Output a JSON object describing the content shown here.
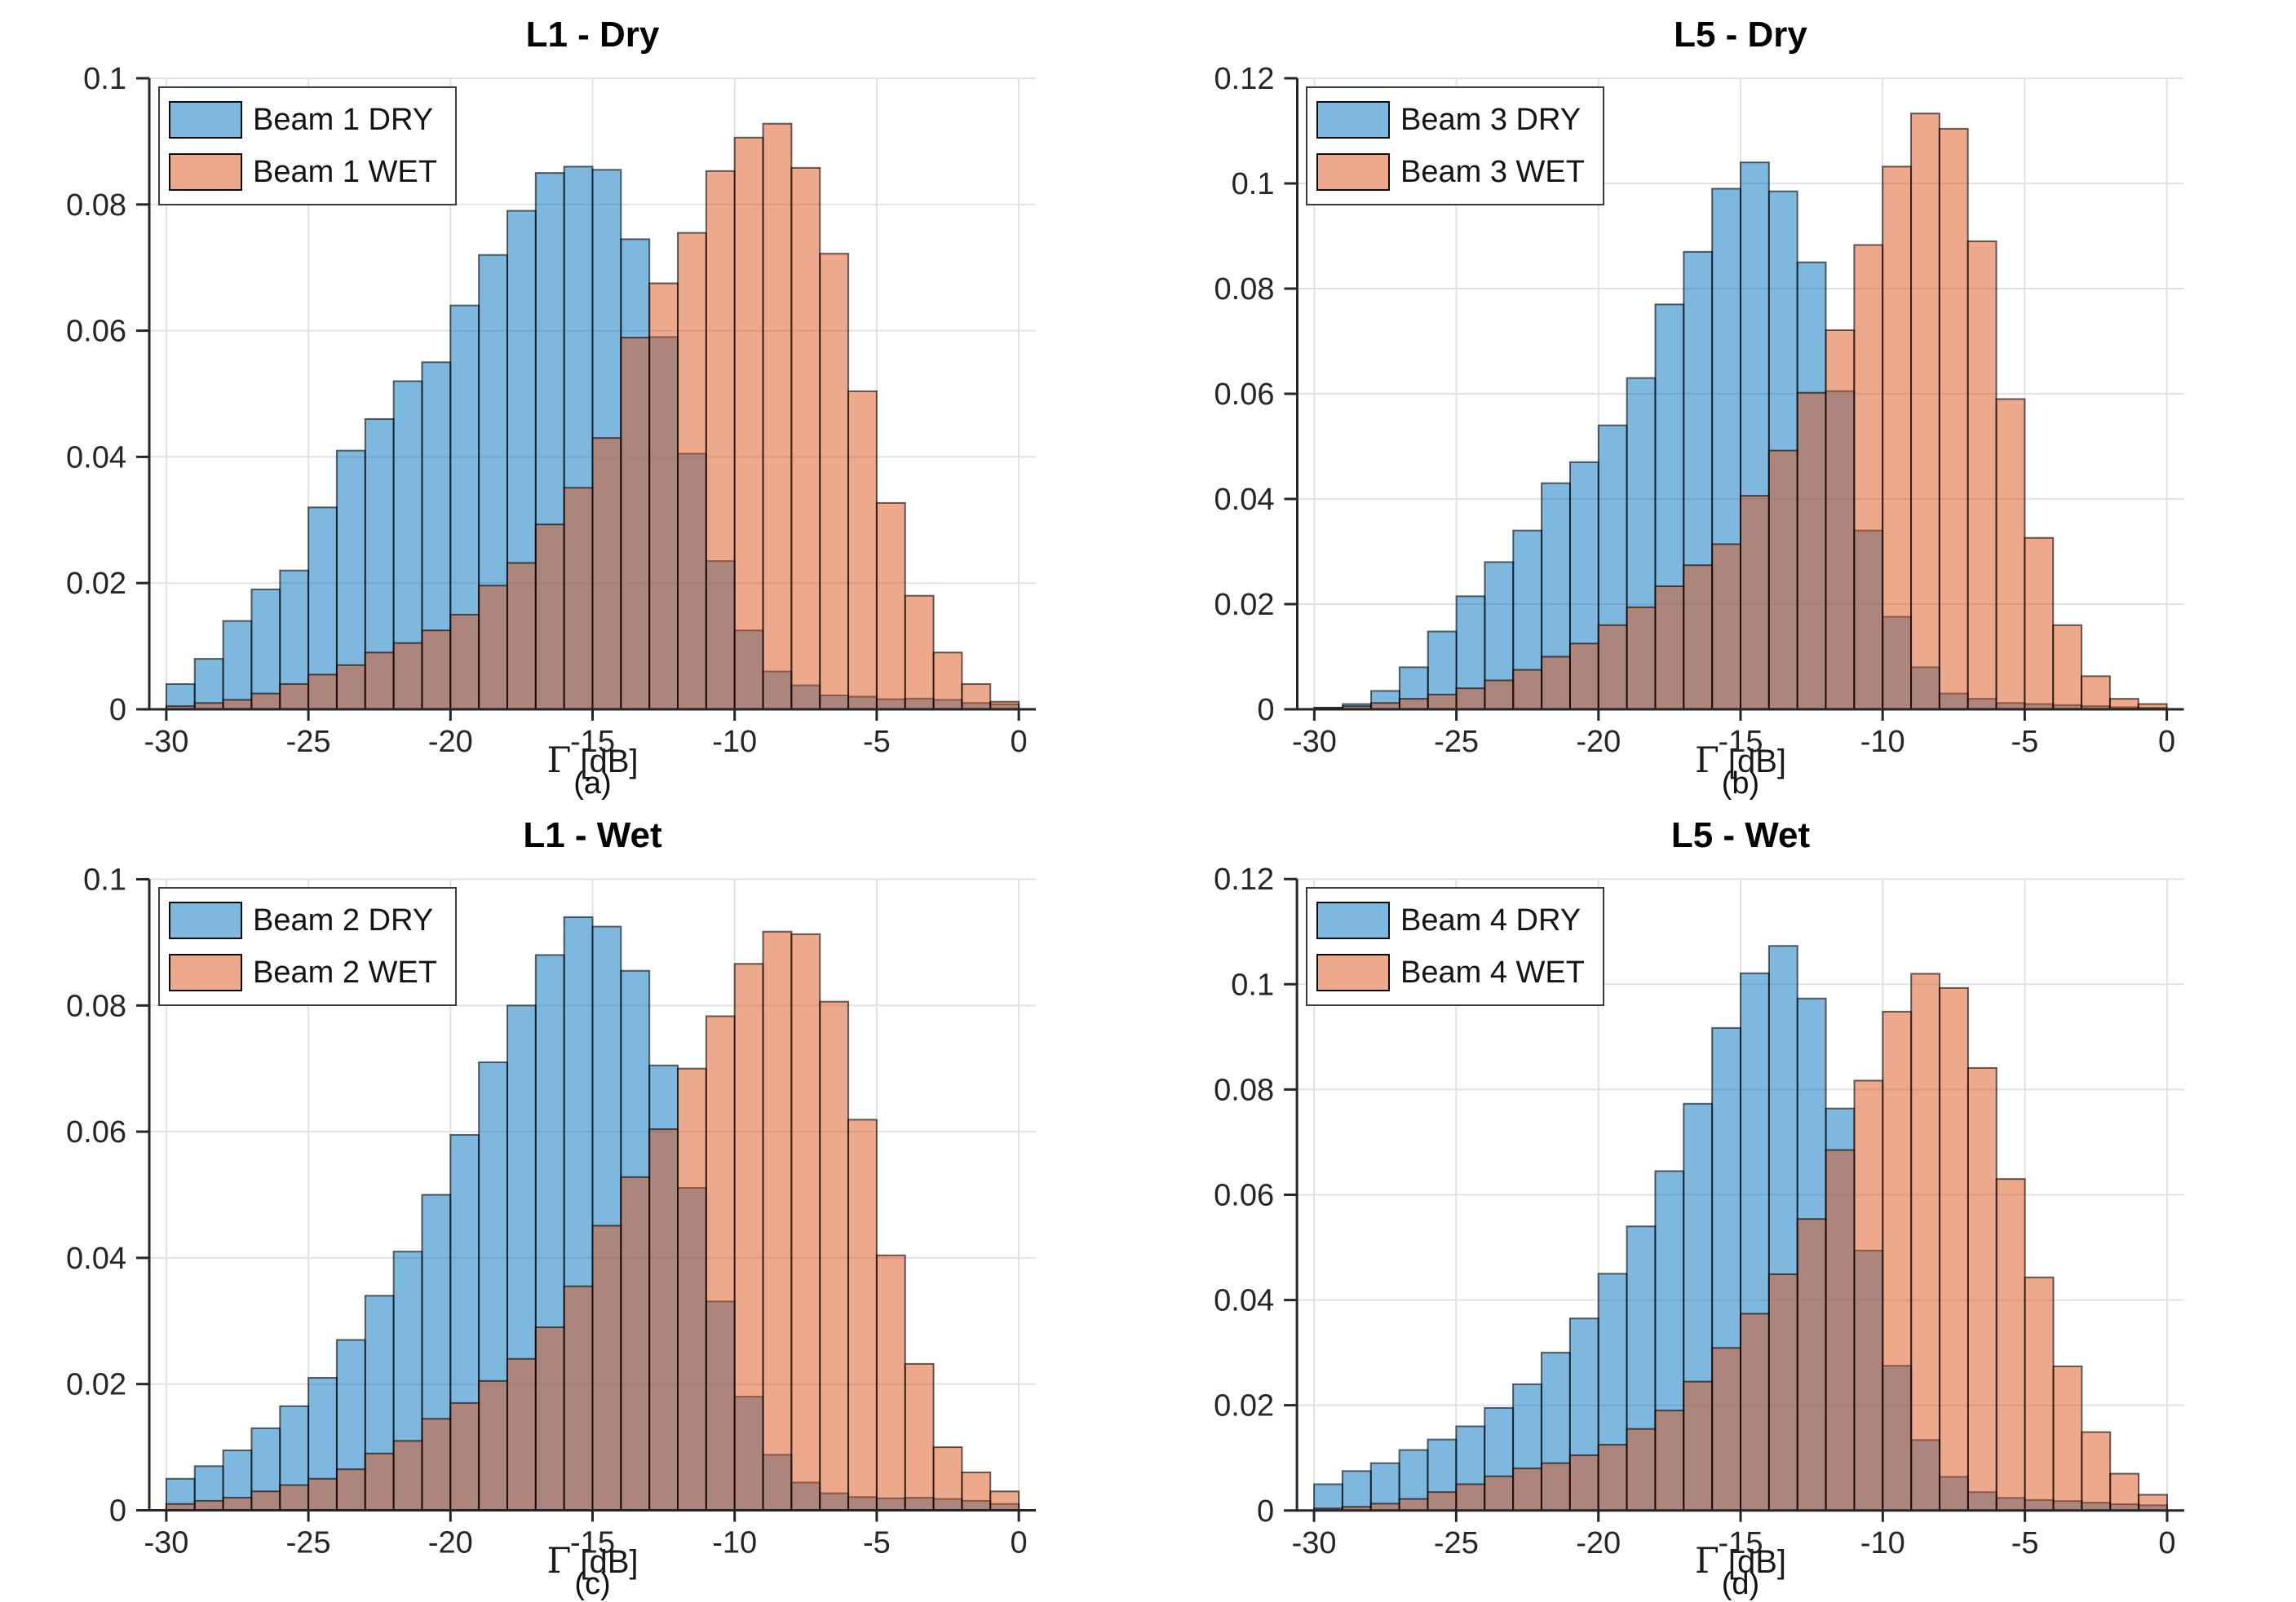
{
  "styles": {
    "background": "#ffffff",
    "dry_color": "#0072BD",
    "wet_color": "#D95319",
    "face_alpha": 0.5,
    "bar_edge_color": "#000000",
    "grid_color": "#E2E2E2",
    "axis_color": "#262626",
    "text_color": "#262626"
  },
  "chart_data": [
    {
      "type": "bar",
      "panel": "a",
      "title": "L1 - Dry",
      "caption": "(a)",
      "xlabel": "Γ [dB]",
      "xlabel_gamma": "Γ",
      "xlabel_rest": " [dB]",
      "bin_start": -30,
      "bin_width": 1,
      "xlim": [
        -30.6,
        0.6
      ],
      "ylim": [
        0,
        0.1
      ],
      "xticks": [
        -30,
        -25,
        -20,
        -15,
        -10,
        -5,
        0
      ],
      "xtick_labels": [
        "-30",
        "-25",
        "-20",
        "-15",
        "-10",
        "-5",
        "0"
      ],
      "yticks": [
        0,
        0.02,
        0.04,
        0.06,
        0.08,
        0.1
      ],
      "ytick_labels": [
        "0",
        "0.02",
        "0.04",
        "0.06",
        "0.08",
        "0.1"
      ],
      "grid": true,
      "legend_position": "top-left",
      "series": [
        {
          "name": "Beam 1 DRY",
          "color": "#0072BD",
          "values": [
            0.004,
            0.008,
            0.014,
            0.019,
            0.022,
            0.032,
            0.041,
            0.046,
            0.052,
            0.055,
            0.064,
            0.072,
            0.079,
            0.085,
            0.086,
            0.0855,
            0.0745,
            0.059,
            0.0405,
            0.0235,
            0.0125,
            0.006,
            0.0038,
            0.0022,
            0.002,
            0.0016,
            0.0017,
            0.0015,
            0.001,
            0.0008
          ]
        },
        {
          "name": "Beam 1 WET",
          "color": "#D95319",
          "values": [
            0.0005,
            0.001,
            0.0015,
            0.0025,
            0.004,
            0.0055,
            0.007,
            0.009,
            0.0105,
            0.0125,
            0.015,
            0.0196,
            0.0232,
            0.0293,
            0.0351,
            0.043,
            0.0589,
            0.0675,
            0.0755,
            0.0853,
            0.0906,
            0.0928,
            0.0858,
            0.0722,
            0.0504,
            0.0327,
            0.018,
            0.009,
            0.004,
            0.0012
          ]
        }
      ]
    },
    {
      "type": "bar",
      "panel": "b",
      "title": "L5 - Dry",
      "caption": "(b)",
      "xlabel": "Γ [dB]",
      "xlabel_gamma": "Γ",
      "xlabel_rest": " [dB]",
      "bin_start": -30,
      "bin_width": 1,
      "xlim": [
        -30.6,
        0.6
      ],
      "ylim": [
        0,
        0.12
      ],
      "xticks": [
        -30,
        -25,
        -20,
        -15,
        -10,
        -5,
        0
      ],
      "xtick_labels": [
        "-30",
        "-25",
        "-20",
        "-15",
        "-10",
        "-5",
        "0"
      ],
      "yticks": [
        0,
        0.02,
        0.04,
        0.06,
        0.08,
        0.1,
        0.12
      ],
      "ytick_labels": [
        "0",
        "0.02",
        "0.04",
        "0.06",
        "0.08",
        "0.1",
        "0.12"
      ],
      "grid": true,
      "legend_position": "top-left",
      "series": [
        {
          "name": "Beam 3 DRY",
          "color": "#0072BD",
          "values": [
            0.0003,
            0.001,
            0.0035,
            0.008,
            0.0148,
            0.0215,
            0.028,
            0.034,
            0.043,
            0.047,
            0.054,
            0.063,
            0.077,
            0.087,
            0.099,
            0.104,
            0.0985,
            0.085,
            0.0605,
            0.034,
            0.0176,
            0.008,
            0.003,
            0.002,
            0.0012,
            0.001,
            0.0008,
            0.0006,
            0.0004,
            0.0003
          ]
        },
        {
          "name": "Beam 3 WET",
          "color": "#D95319",
          "values": [
            0.0003,
            0.0006,
            0.0012,
            0.002,
            0.0028,
            0.004,
            0.0055,
            0.0075,
            0.01,
            0.0125,
            0.016,
            0.0194,
            0.0234,
            0.0274,
            0.0314,
            0.0406,
            0.0492,
            0.0602,
            0.0721,
            0.0883,
            0.1032,
            0.1133,
            0.1104,
            0.089,
            0.059,
            0.0326,
            0.016,
            0.0063,
            0.002,
            0.001
          ]
        }
      ]
    },
    {
      "type": "bar",
      "panel": "c",
      "title": "L1 - Wet",
      "caption": "(c)",
      "xlabel": "Γ [dB]",
      "xlabel_gamma": "Γ",
      "xlabel_rest": " [dB]",
      "bin_start": -30,
      "bin_width": 1,
      "xlim": [
        -30.6,
        0.6
      ],
      "ylim": [
        0,
        0.1
      ],
      "xticks": [
        -30,
        -25,
        -20,
        -15,
        -10,
        -5,
        0
      ],
      "xtick_labels": [
        "-30",
        "-25",
        "-20",
        "-15",
        "-10",
        "-5",
        "0"
      ],
      "yticks": [
        0,
        0.02,
        0.04,
        0.06,
        0.08,
        0.1
      ],
      "ytick_labels": [
        "0",
        "0.02",
        "0.04",
        "0.06",
        "0.08",
        "0.1"
      ],
      "grid": true,
      "legend_position": "top-left",
      "series": [
        {
          "name": "Beam 2 DRY",
          "color": "#0072BD",
          "values": [
            0.005,
            0.007,
            0.0095,
            0.013,
            0.0165,
            0.021,
            0.027,
            0.034,
            0.041,
            0.05,
            0.0595,
            0.071,
            0.08,
            0.088,
            0.094,
            0.0925,
            0.0855,
            0.0705,
            0.0511,
            0.0331,
            0.018,
            0.0088,
            0.0044,
            0.0027,
            0.0021,
            0.0019,
            0.002,
            0.0018,
            0.0015,
            0.001
          ]
        },
        {
          "name": "Beam 2 WET",
          "color": "#D95319",
          "values": [
            0.001,
            0.0015,
            0.002,
            0.003,
            0.004,
            0.005,
            0.0065,
            0.009,
            0.011,
            0.0145,
            0.017,
            0.0205,
            0.024,
            0.029,
            0.0355,
            0.0451,
            0.0528,
            0.0604,
            0.07,
            0.0783,
            0.0866,
            0.0917,
            0.0913,
            0.0806,
            0.0619,
            0.0404,
            0.0232,
            0.01,
            0.006,
            0.003
          ]
        }
      ]
    },
    {
      "type": "bar",
      "panel": "d",
      "title": "L5 - Wet",
      "caption": "(d)",
      "xlabel": "Γ [dB]",
      "xlabel_gamma": "Γ",
      "xlabel_rest": " [dB]",
      "bin_start": -30,
      "bin_width": 1,
      "xlim": [
        -30.6,
        0.6
      ],
      "ylim": [
        0,
        0.12
      ],
      "xticks": [
        -30,
        -25,
        -20,
        -15,
        -10,
        -5,
        0
      ],
      "xtick_labels": [
        "-30",
        "-25",
        "-20",
        "-15",
        "-10",
        "-5",
        "0"
      ],
      "yticks": [
        0,
        0.02,
        0.04,
        0.06,
        0.08,
        0.1,
        0.12
      ],
      "ytick_labels": [
        "0",
        "0.02",
        "0.04",
        "0.06",
        "0.08",
        "0.1",
        "0.12"
      ],
      "grid": true,
      "legend_position": "top-left",
      "series": [
        {
          "name": "Beam 4 DRY",
          "color": "#0072BD",
          "values": [
            0.005,
            0.0075,
            0.009,
            0.0115,
            0.0135,
            0.016,
            0.0195,
            0.024,
            0.03,
            0.0365,
            0.045,
            0.054,
            0.0645,
            0.0773,
            0.0917,
            0.1021,
            0.1073,
            0.0973,
            0.0764,
            0.0494,
            0.0275,
            0.0134,
            0.0064,
            0.0035,
            0.0024,
            0.002,
            0.0018,
            0.0015,
            0.0012,
            0.001
          ]
        },
        {
          "name": "Beam 4 WET",
          "color": "#D95319",
          "values": [
            0.0004,
            0.0007,
            0.0013,
            0.0022,
            0.0035,
            0.005,
            0.0065,
            0.008,
            0.009,
            0.0105,
            0.0125,
            0.0155,
            0.019,
            0.0245,
            0.0309,
            0.0374,
            0.0449,
            0.0554,
            0.0685,
            0.0817,
            0.0948,
            0.102,
            0.0993,
            0.0841,
            0.063,
            0.0443,
            0.0274,
            0.0149,
            0.007,
            0.003
          ]
        }
      ]
    }
  ]
}
